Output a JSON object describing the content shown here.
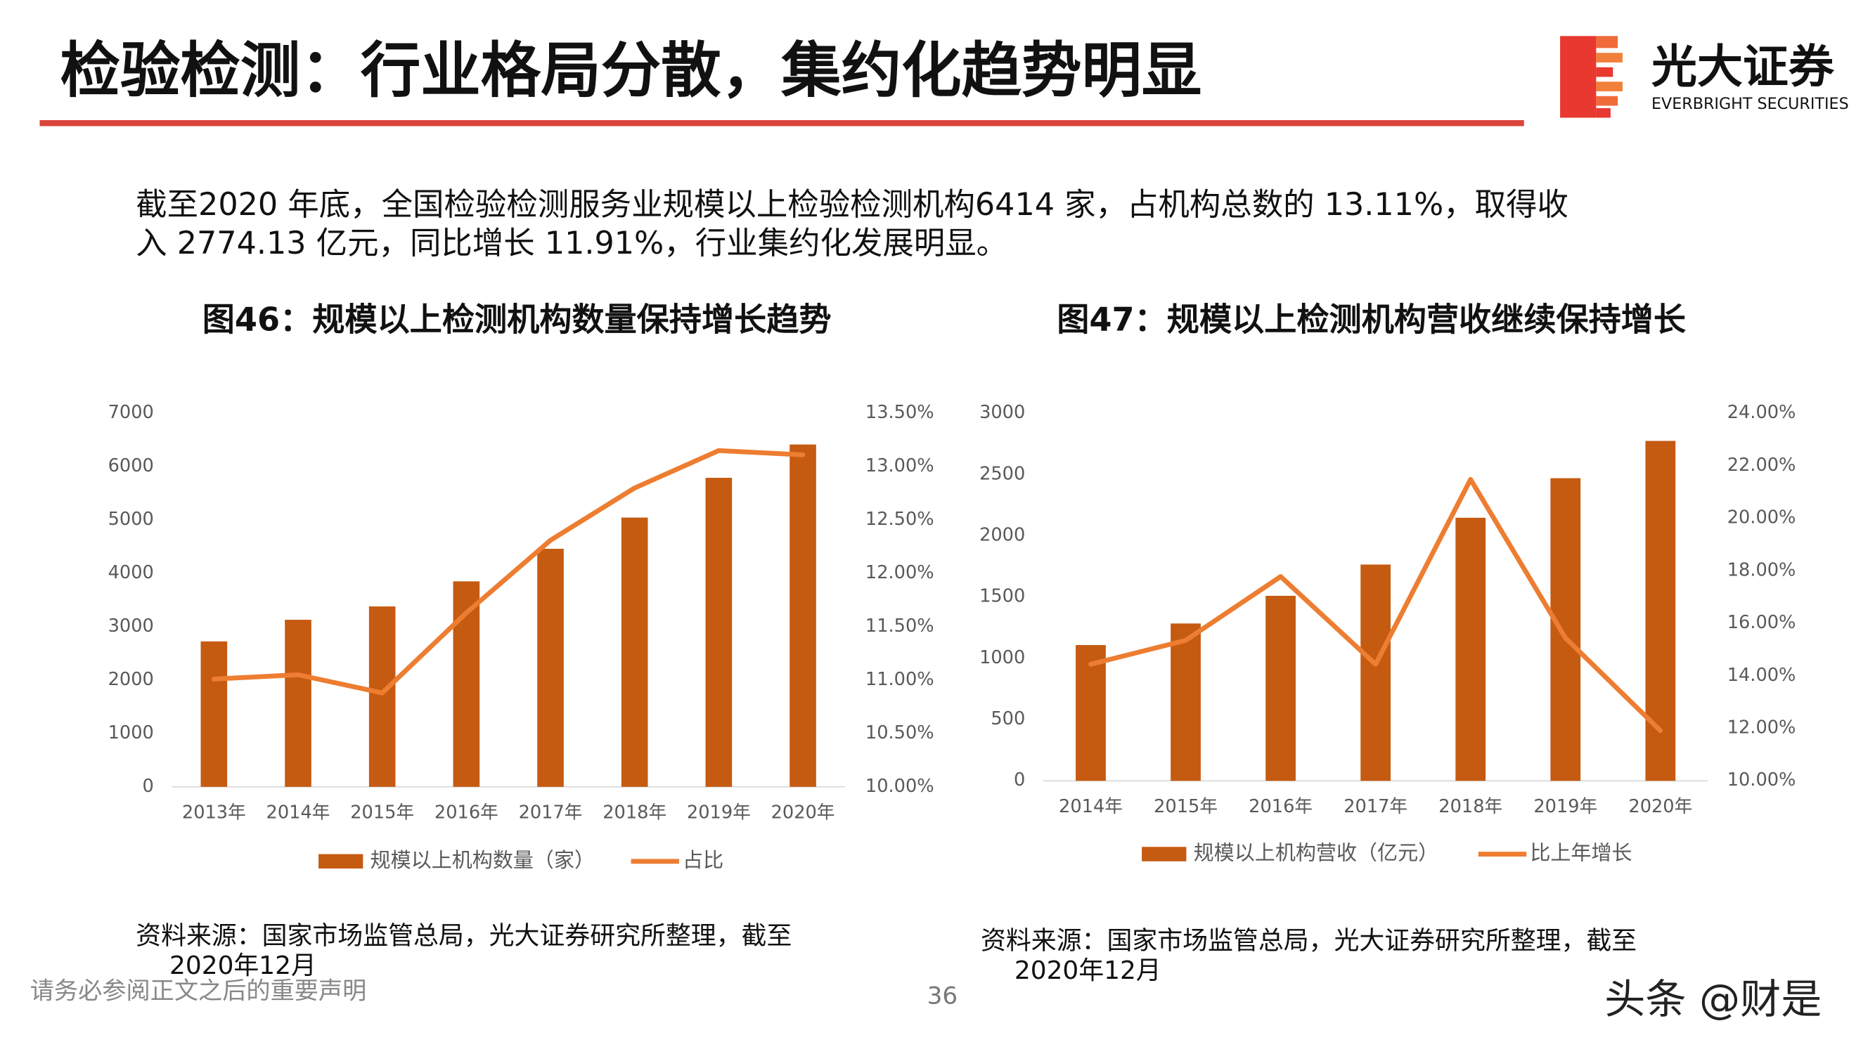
{
  "header": {
    "title": "检验检测：行业格局分散，集约化趋势明显",
    "logo_name": "光大证券",
    "logo_sub": "EVERBRIGHT SECURITIES"
  },
  "body": {
    "lines": [
      "截至2020 年底，全国检验检测服务业规模以上检验检测机构6414 家，占机构总数的 13.11%，取得收",
      "入 2774.13 亿元，同比增长 11.91%，行业集约化发展明显。"
    ]
  },
  "footer": {
    "disclaimer": "请务必参阅正文之后的重要声明",
    "page": "36",
    "watermark": "头条 @财是"
  },
  "chart_data": [
    {
      "type": "bar",
      "title": "图46：规模以上检测机构数量保持增长趋势",
      "categories": [
        "2013年",
        "2014年",
        "2015年",
        "2016年",
        "2017年",
        "2018年",
        "2019年",
        "2020年"
      ],
      "series": [
        {
          "name": "规模以上机构数量（家）",
          "type": "bar",
          "color": "#c55a11",
          "values": [
            2725,
            3130,
            3380,
            3850,
            4460,
            5045,
            5790,
            6414
          ]
        },
        {
          "name": "占比",
          "type": "line",
          "axis": "y2",
          "color": "#ed7d31",
          "values": [
            11.01,
            11.05,
            10.88,
            11.63,
            12.31,
            12.8,
            13.15,
            13.11
          ]
        }
      ],
      "ylim": [
        0,
        7000
      ],
      "yticks": [
        0,
        1000,
        2000,
        3000,
        4000,
        5000,
        6000,
        7000
      ],
      "y2lim": [
        10,
        13.5
      ],
      "y2ticks": [
        {
          "value": 10,
          "label": "10.00%"
        },
        {
          "value": 10.5,
          "label": "10.50%"
        },
        {
          "value": 11,
          "label": "11.00%"
        },
        {
          "value": 11.5,
          "label": "11.50%"
        },
        {
          "value": 12,
          "label": "12.00%"
        },
        {
          "value": 12.5,
          "label": "12.50%"
        },
        {
          "value": 13,
          "label": "13.00%"
        },
        {
          "value": 13.5,
          "label": "13.50%"
        }
      ],
      "legend": "bottom",
      "grid": false,
      "source": [
        "资料来源：国家市场监管总局，光大证券研究所整理，截至",
        "2020年12月"
      ]
    },
    {
      "type": "bar",
      "title": "图47：规模以上检测机构营收继续保持增长",
      "categories": [
        "2014年",
        "2015年",
        "2016年",
        "2017年",
        "2018年",
        "2019年",
        "2020年"
      ],
      "series": [
        {
          "name": "规模以上机构营收（亿元）",
          "type": "bar",
          "color": "#c55a11",
          "values": [
            1108,
            1284,
            1510,
            1765,
            2147,
            2470,
            2774.13
          ]
        },
        {
          "name": "比上年增长",
          "type": "line",
          "axis": "y2",
          "color": "#ed7d31",
          "values": [
            14.44,
            15.35,
            17.78,
            14.44,
            21.48,
            15.44,
            11.91
          ]
        }
      ],
      "ylim": [
        0,
        3000
      ],
      "yticks": [
        0,
        500,
        1000,
        1500,
        2000,
        2500,
        3000
      ],
      "y2lim": [
        10,
        24
      ],
      "y2ticks": [
        {
          "value": 10,
          "label": "10.00%"
        },
        {
          "value": 12,
          "label": "12.00%"
        },
        {
          "value": 14,
          "label": "14.00%"
        },
        {
          "value": 16,
          "label": "16.00%"
        },
        {
          "value": 18,
          "label": "18.00%"
        },
        {
          "value": 20,
          "label": "20.00%"
        },
        {
          "value": 22,
          "label": "22.00%"
        },
        {
          "value": 24,
          "label": "24.00%"
        }
      ],
      "legend": "bottom",
      "grid": false,
      "source": [
        "资料来源：国家市场监管总局，光大证券研究所整理，截至",
        "2020年12月"
      ]
    }
  ]
}
